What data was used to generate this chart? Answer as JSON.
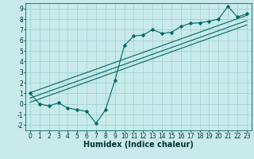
{
  "title": "",
  "xlabel": "Humidex (Indice chaleur)",
  "background_color": "#c8eaea",
  "grid_color": "#9ecece",
  "line_color": "#006666",
  "xlim": [
    -0.5,
    23.5
  ],
  "ylim": [
    -2.5,
    9.5
  ],
  "xticks": [
    0,
    1,
    2,
    3,
    4,
    5,
    6,
    7,
    8,
    9,
    10,
    11,
    12,
    13,
    14,
    15,
    16,
    17,
    18,
    19,
    20,
    21,
    22,
    23
  ],
  "yticks": [
    -2,
    -1,
    0,
    1,
    2,
    3,
    4,
    5,
    6,
    7,
    8,
    9
  ],
  "data_x": [
    0,
    1,
    2,
    3,
    4,
    5,
    6,
    7,
    8,
    9,
    10,
    11,
    12,
    13,
    14,
    15,
    16,
    17,
    18,
    19,
    20,
    21,
    22,
    23
  ],
  "data_y": [
    1.0,
    0.0,
    -0.2,
    0.1,
    -0.4,
    -0.55,
    -0.7,
    -1.85,
    -0.55,
    2.2,
    5.5,
    6.4,
    6.5,
    7.0,
    6.65,
    6.75,
    7.3,
    7.6,
    7.65,
    7.8,
    8.0,
    9.2,
    8.2,
    8.5
  ],
  "reg_line1_x": [
    0,
    23
  ],
  "reg_line1_y": [
    1.05,
    8.35
  ],
  "reg_line2_x": [
    0,
    23
  ],
  "reg_line2_y": [
    0.55,
    7.85
  ],
  "reg_line3_x": [
    0,
    23
  ],
  "reg_line3_y": [
    0.15,
    7.45
  ],
  "font_size_label": 7,
  "font_size_tick": 5.5
}
